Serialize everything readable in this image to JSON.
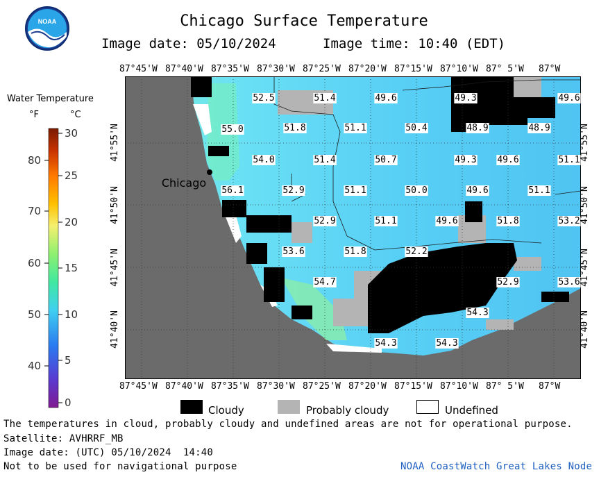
{
  "header": {
    "title": "Chicago Surface Temperature",
    "image_date": "Image date: 05/10/2024",
    "image_time": "Image time: 10:40 (EDT)"
  },
  "logo": {
    "text": "NOAA"
  },
  "colorbar": {
    "title": "Water Temperature",
    "unit_f": "°F",
    "unit_c": "°C",
    "f_ticks": [
      "80",
      "70",
      "60",
      "50",
      "40"
    ],
    "c_ticks": [
      "30",
      "25",
      "20",
      "15",
      "10",
      "5",
      "0"
    ]
  },
  "map": {
    "top_lon": [
      "87°45'W",
      "87°40'W",
      "87°35'W",
      "87°30'W",
      "87°25'W",
      "87°20'W",
      "87°15'W",
      "87°10'W",
      "87° 5'W",
      "87°W"
    ],
    "bottom_lon": [
      "87°45'W",
      "87°40'W",
      "87°35'W",
      "87°30'W",
      "87°25'W",
      "87°20'W",
      "87°15'W",
      "87°10'W",
      "87° 5'W",
      "87°W"
    ],
    "lat": [
      "41°55'N",
      "41°50'N",
      "41°45'N",
      "41°40'N"
    ],
    "city": "Chicago",
    "temps": [
      {
        "v": "52.5"
      },
      {
        "v": "51.4"
      },
      {
        "v": "49.6"
      },
      {
        "v": "49.3"
      },
      {
        "v": "49.6"
      },
      {
        "v": "55.0"
      },
      {
        "v": "51.8"
      },
      {
        "v": "51.1"
      },
      {
        "v": "50.4"
      },
      {
        "v": "48.9"
      },
      {
        "v": "48.9"
      },
      {
        "v": "54.0"
      },
      {
        "v": "51.4"
      },
      {
        "v": "50.7"
      },
      {
        "v": "49.3"
      },
      {
        "v": "49.6"
      },
      {
        "v": "51.1"
      },
      {
        "v": "56.1"
      },
      {
        "v": "52.9"
      },
      {
        "v": "51.1"
      },
      {
        "v": "50.0"
      },
      {
        "v": "49.6"
      },
      {
        "v": "51.1"
      },
      {
        "v": "52.9"
      },
      {
        "v": "51.1"
      },
      {
        "v": "49.6"
      },
      {
        "v": "51.8"
      },
      {
        "v": "53.2"
      },
      {
        "v": "53.6"
      },
      {
        "v": "51.8"
      },
      {
        "v": "52.2"
      },
      {
        "v": "54.7"
      },
      {
        "v": "52.9"
      },
      {
        "v": "53.6"
      },
      {
        "v": "54.3"
      },
      {
        "v": "54.3"
      },
      {
        "v": "54.3"
      }
    ]
  },
  "legend": {
    "cloudy": "Cloudy",
    "probably_cloudy": "Probably cloudy",
    "undefined": "Undefined"
  },
  "footer": {
    "disclaimer": "The temperatures in cloud, probably cloudy and undefined areas are not for operational purpose.",
    "satellite": "Satellite: AVHRRF_MB",
    "utc_date": "Image date: (UTC) 05/10/2024  14:40",
    "nav": "Not to be used for navigational purpose",
    "credit": "NOAA CoastWatch Great Lakes Node"
  },
  "colors": {
    "land": "#6b6b6b",
    "water": "#5ccff5",
    "cloud": "#000000",
    "prob_cloud": "#b4b4b4",
    "credit": "#2060c0"
  }
}
